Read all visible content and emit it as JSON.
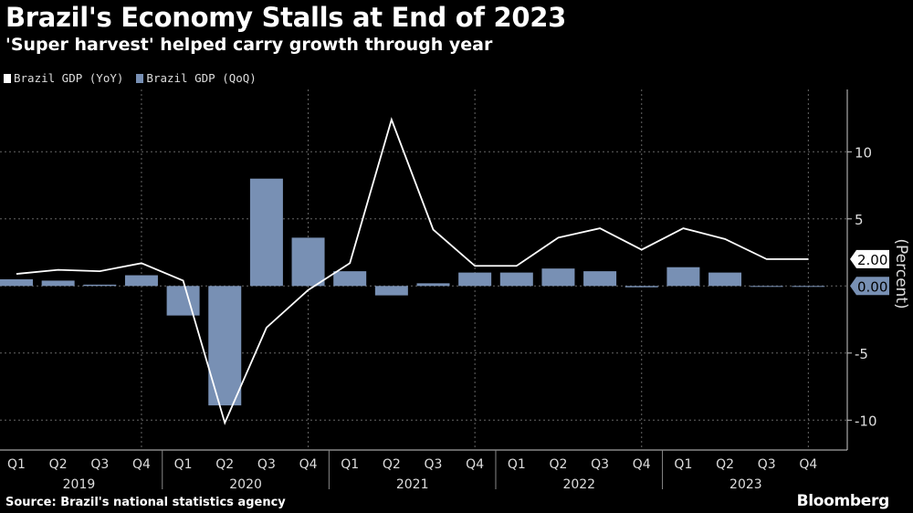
{
  "title": "Brazil's Economy Stalls at End of 2023",
  "subtitle": "'Super harvest' helped carry growth through year",
  "source": "Source: Brazil's national statistics agency",
  "brand": "Bloomberg",
  "colors": {
    "line": "#ffffff",
    "bar": "#7890b4",
    "grid": "#666666",
    "background": "#000000"
  },
  "chart_data": {
    "type": "bar+line",
    "ylabel": "(Percent)",
    "ylim": [
      -11.5,
      14.5
    ],
    "yticks": [
      -10,
      -5,
      5,
      10
    ],
    "y_axis_position": "right",
    "grid": true,
    "legend_position": "top-left",
    "categories": [
      "Q1",
      "Q2",
      "Q3",
      "Q4",
      "Q1",
      "Q2",
      "Q3",
      "Q4",
      "Q1",
      "Q2",
      "Q3",
      "Q4",
      "Q1",
      "Q2",
      "Q3",
      "Q4",
      "Q1",
      "Q2",
      "Q3",
      "Q4"
    ],
    "years": [
      {
        "label": "2019",
        "quarters": [
          0,
          3
        ]
      },
      {
        "label": "2020",
        "quarters": [
          4,
          7
        ]
      },
      {
        "label": "2021",
        "quarters": [
          8,
          11
        ]
      },
      {
        "label": "2022",
        "quarters": [
          12,
          15
        ]
      },
      {
        "label": "2023",
        "quarters": [
          16,
          19
        ]
      }
    ],
    "series": [
      {
        "name": "Brazil GDP (YoY)",
        "kind": "line",
        "color": "#ffffff",
        "values": [
          0.9,
          1.2,
          1.1,
          1.7,
          0.4,
          -10.2,
          -3.1,
          -0.3,
          1.7,
          12.4,
          4.2,
          1.5,
          1.5,
          3.6,
          4.3,
          2.7,
          4.3,
          3.5,
          2.0,
          2.0
        ],
        "last_value_label": "2.00"
      },
      {
        "name": "Brazil GDP (QoQ)",
        "kind": "bar",
        "color": "#7890b4",
        "values": [
          0.5,
          0.4,
          0.1,
          0.8,
          -2.2,
          -8.9,
          8.0,
          3.6,
          1.1,
          -0.7,
          0.2,
          1.0,
          1.0,
          1.3,
          1.1,
          -0.1,
          1.4,
          1.0,
          0.0,
          0.0
        ],
        "last_value_label": "0.00"
      }
    ]
  }
}
